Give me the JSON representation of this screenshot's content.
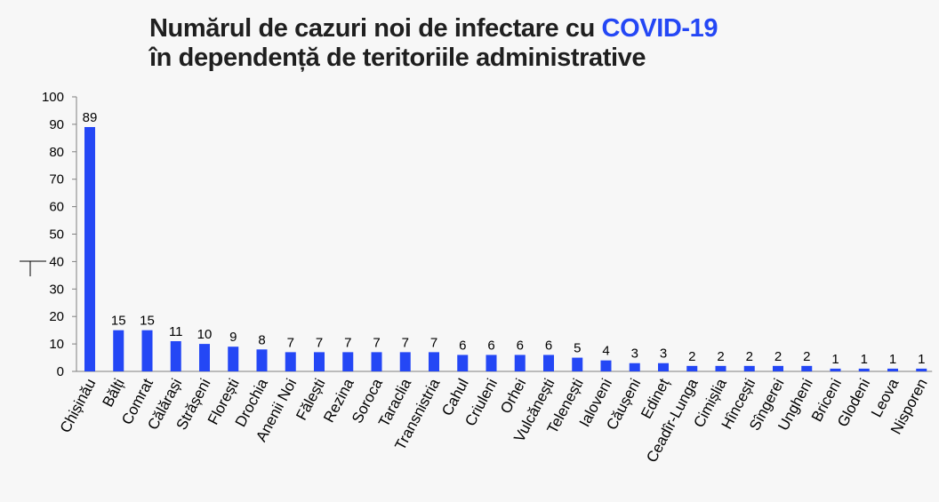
{
  "chart_data": {
    "type": "bar",
    "title_line1": "Numărul de cazuri noi de infectare cu ",
    "title_highlight": "COVID-19",
    "title_line2": "în dependență de teritoriile administrative",
    "categories": [
      "Chișinău",
      "Bălți",
      "Comrat",
      "Călărași",
      "Strășeni",
      "Florești",
      "Drochia",
      "Anenii Noi",
      "Fălești",
      "Rezina",
      "Soroca",
      "Taraclia",
      "Transnistria",
      "Cahul",
      "Criuleni",
      "Orhei",
      "Vulcănești",
      "Telenești",
      "Ialoveni",
      "Căușeni",
      "Edineț",
      "Ceadîr-Lunga",
      "Cimișlia",
      "Hîncești",
      "Sîngerei",
      "Ungheni",
      "Briceni",
      "Glodeni",
      "Leova",
      "Nisporen"
    ],
    "values": [
      89,
      15,
      15,
      11,
      10,
      9,
      8,
      7,
      7,
      7,
      7,
      7,
      7,
      6,
      6,
      6,
      6,
      5,
      4,
      3,
      3,
      2,
      2,
      2,
      2,
      2,
      1,
      1,
      1,
      1
    ],
    "yticks": [
      "0",
      "10",
      "20",
      "30",
      "40",
      "50",
      "60",
      "70",
      "80",
      "90",
      "100"
    ],
    "ylim": [
      0,
      100
    ],
    "xlabel": "",
    "ylabel": "",
    "grid": false,
    "bar_color": "#2447f5",
    "highlight_color": "#2447f5"
  }
}
